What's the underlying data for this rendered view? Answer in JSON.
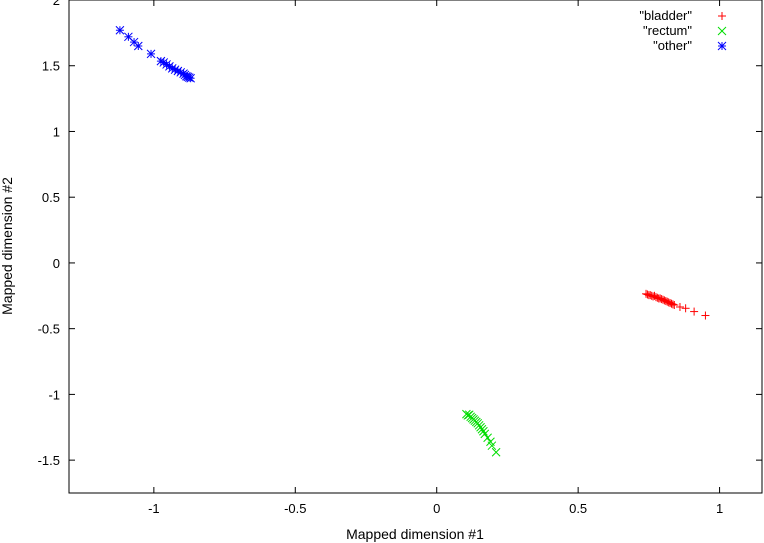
{
  "chart_data": {
    "type": "scatter",
    "title": "",
    "xlabel": "Mapped dimension #1",
    "ylabel": "Mapped dimension #2",
    "xlim": [
      -1.3,
      1.15
    ],
    "ylim": [
      -1.75,
      2.0
    ],
    "xticks": [
      -1,
      -0.5,
      0,
      0.5,
      1
    ],
    "xtick_labels": [
      "-1",
      "-0.5",
      "0",
      "0.5",
      "1"
    ],
    "yticks": [
      -1.5,
      -1,
      -0.5,
      0,
      0.5,
      1,
      1.5,
      2
    ],
    "ytick_labels": [
      "-1.5",
      "-1",
      "-0.5",
      "0",
      "0.5",
      "1",
      "1.5",
      "2"
    ],
    "grid": false,
    "legend_position": "top-right",
    "series": [
      {
        "name": "\"bladder\"",
        "color": "#ff0000",
        "marker": "plus",
        "points": [
          [
            0.74,
            -0.235
          ],
          [
            0.745,
            -0.24
          ],
          [
            0.75,
            -0.245
          ],
          [
            0.755,
            -0.245
          ],
          [
            0.76,
            -0.25
          ],
          [
            0.765,
            -0.255
          ],
          [
            0.77,
            -0.25
          ],
          [
            0.775,
            -0.26
          ],
          [
            0.78,
            -0.265
          ],
          [
            0.785,
            -0.27
          ],
          [
            0.79,
            -0.27
          ],
          [
            0.795,
            -0.275
          ],
          [
            0.8,
            -0.28
          ],
          [
            0.805,
            -0.285
          ],
          [
            0.81,
            -0.29
          ],
          [
            0.815,
            -0.295
          ],
          [
            0.82,
            -0.3
          ],
          [
            0.825,
            -0.305
          ],
          [
            0.83,
            -0.31
          ],
          [
            0.835,
            -0.315
          ],
          [
            0.84,
            -0.32
          ],
          [
            0.86,
            -0.335
          ],
          [
            0.88,
            -0.345
          ],
          [
            0.91,
            -0.37
          ],
          [
            0.95,
            -0.4
          ]
        ]
      },
      {
        "name": "\"rectum\"",
        "color": "#00dd00",
        "marker": "cross",
        "points": [
          [
            0.105,
            -1.15
          ],
          [
            0.11,
            -1.16
          ],
          [
            0.115,
            -1.155
          ],
          [
            0.12,
            -1.17
          ],
          [
            0.125,
            -1.18
          ],
          [
            0.13,
            -1.19
          ],
          [
            0.135,
            -1.2
          ],
          [
            0.14,
            -1.21
          ],
          [
            0.145,
            -1.22
          ],
          [
            0.15,
            -1.235
          ],
          [
            0.155,
            -1.25
          ],
          [
            0.16,
            -1.265
          ],
          [
            0.165,
            -1.28
          ],
          [
            0.17,
            -1.3
          ],
          [
            0.18,
            -1.33
          ],
          [
            0.19,
            -1.36
          ],
          [
            0.195,
            -1.39
          ],
          [
            0.21,
            -1.44
          ]
        ]
      },
      {
        "name": "\"other\"",
        "color": "#0000ff",
        "marker": "star",
        "points": [
          [
            -1.12,
            1.77
          ],
          [
            -1.09,
            1.72
          ],
          [
            -1.07,
            1.68
          ],
          [
            -1.055,
            1.65
          ],
          [
            -1.01,
            1.59
          ],
          [
            -0.975,
            1.535
          ],
          [
            -0.965,
            1.525
          ],
          [
            -0.955,
            1.51
          ],
          [
            -0.945,
            1.495
          ],
          [
            -0.935,
            1.48
          ],
          [
            -0.925,
            1.47
          ],
          [
            -0.915,
            1.46
          ],
          [
            -0.905,
            1.45
          ],
          [
            -0.895,
            1.44
          ],
          [
            -0.89,
            1.43
          ],
          [
            -0.885,
            1.42
          ],
          [
            -0.88,
            1.415
          ],
          [
            -0.875,
            1.41
          ],
          [
            -0.87,
            1.405
          ]
        ]
      }
    ]
  }
}
